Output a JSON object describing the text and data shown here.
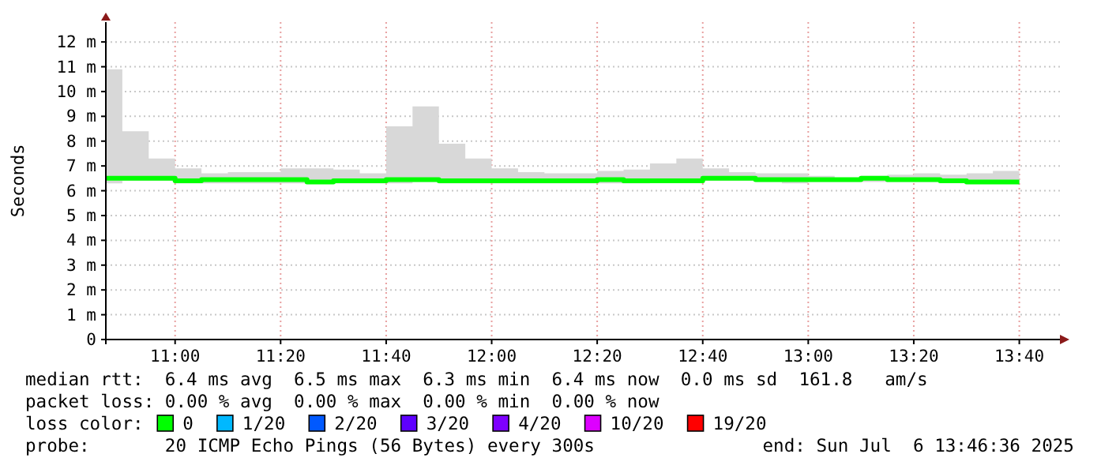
{
  "chart_data": {
    "type": "step",
    "ylabel": "Seconds",
    "legend_title": "loss color:",
    "legend": "bottom",
    "grid": true,
    "xlim": [
      10.7812,
      13.8
    ],
    "xticks": [
      {
        "value": 11,
        "label": "11:00"
      },
      {
        "value": 11.3333,
        "label": "11:20"
      },
      {
        "value": 11.6667,
        "label": "11:40"
      },
      {
        "value": 12,
        "label": "12:00"
      },
      {
        "value": 12.3333,
        "label": "12:20"
      },
      {
        "value": 12.6667,
        "label": "12:40"
      },
      {
        "value": 13,
        "label": "13:00"
      },
      {
        "value": 13.3333,
        "label": "13:20"
      },
      {
        "value": 13.6667,
        "label": "13:40"
      }
    ],
    "ylim": [
      0,
      12.8
    ],
    "yticks": [
      0,
      {
        "value": 1,
        "label": "1 m"
      },
      {
        "value": 2,
        "label": "2 m"
      },
      {
        "value": 3,
        "label": "3 m"
      },
      {
        "value": 4,
        "label": "4 m"
      },
      {
        "value": 5,
        "label": "5 m"
      },
      {
        "value": 6,
        "label": "6 m"
      },
      {
        "value": 7,
        "label": "7 m"
      },
      {
        "value": 8,
        "label": "8 m"
      },
      {
        "value": 9,
        "label": "9 m"
      },
      {
        "value": 10,
        "label": "10 m"
      },
      {
        "value": 11,
        "label": "11 m"
      },
      {
        "value": 12,
        "label": "12 m"
      }
    ],
    "x": [
      10.7812,
      10.8333,
      10.9167,
      11,
      11.0833,
      11.1667,
      11.25,
      11.3333,
      11.4167,
      11.5,
      11.5833,
      11.6667,
      11.75,
      11.8333,
      11.9167,
      12,
      12.0833,
      12.1667,
      12.25,
      12.3333,
      12.4167,
      12.5,
      12.5833,
      12.6667,
      12.75,
      12.8333,
      12.9167,
      13,
      13.0833,
      13.1667,
      13.25,
      13.3333,
      13.4167,
      13.5,
      13.5833,
      13.6667
    ],
    "series": [
      {
        "name": "0",
        "color": "#00ff00",
        "values": [
          6.5,
          6.5,
          6.5,
          6.4,
          6.45,
          6.45,
          6.45,
          6.45,
          6.35,
          6.4,
          6.4,
          6.45,
          6.45,
          6.4,
          6.4,
          6.4,
          6.4,
          6.4,
          6.4,
          6.45,
          6.4,
          6.4,
          6.4,
          6.5,
          6.5,
          6.45,
          6.45,
          6.45,
          6.45,
          6.5,
          6.45,
          6.45,
          6.4,
          6.35,
          6.35,
          6.35
        ],
        "lower": [
          6.3,
          6.4,
          6.4,
          6.3,
          6.3,
          6.3,
          6.3,
          6.3,
          6.3,
          6.3,
          6.3,
          6.3,
          6.35,
          6.3,
          6.3,
          6.3,
          6.3,
          6.3,
          6.3,
          6.3,
          6.3,
          6.35,
          6.35,
          6.4,
          6.4,
          6.35,
          6.3,
          6.35,
          6.35,
          6.35,
          6.35,
          6.35,
          6.35,
          6.3,
          6.3,
          6.3
        ],
        "upper": [
          10.9,
          8.4,
          7.3,
          6.9,
          6.7,
          6.75,
          6.75,
          6.9,
          6.9,
          6.85,
          6.7,
          8.6,
          9.4,
          7.9,
          7.3,
          6.9,
          6.75,
          6.7,
          6.7,
          6.8,
          6.85,
          7.1,
          7.3,
          6.9,
          6.75,
          6.7,
          6.7,
          6.6,
          6.5,
          6.6,
          6.65,
          6.7,
          6.65,
          6.7,
          6.8,
          6.8
        ]
      },
      {
        "name": "1/20",
        "color": "#00b8ff",
        "values": [
          null,
          null,
          null,
          null,
          null,
          null,
          null,
          null,
          null,
          null,
          null,
          null,
          null,
          null,
          null,
          null,
          null,
          null,
          null,
          null,
          null,
          null,
          null,
          null,
          null,
          null,
          null,
          null,
          null,
          null,
          null,
          null,
          null,
          null,
          null,
          null
        ]
      },
      {
        "name": "2/20",
        "color": "#0059ff",
        "values": [
          null,
          null,
          null,
          null,
          null,
          null,
          null,
          null,
          null,
          null,
          null,
          null,
          null,
          null,
          null,
          null,
          null,
          null,
          null,
          null,
          null,
          null,
          null,
          null,
          null,
          null,
          null,
          null,
          null,
          null,
          null,
          null,
          null,
          null,
          null,
          null
        ]
      },
      {
        "name": "3/20",
        "color": "#5e00ff",
        "values": [
          null,
          null,
          null,
          null,
          null,
          null,
          null,
          null,
          null,
          null,
          null,
          null,
          null,
          null,
          null,
          null,
          null,
          null,
          null,
          null,
          null,
          null,
          null,
          null,
          null,
          null,
          null,
          null,
          null,
          null,
          null,
          null,
          null,
          null,
          null,
          null
        ]
      },
      {
        "name": "4/20",
        "color": "#7e00ff",
        "values": [
          null,
          null,
          null,
          null,
          null,
          null,
          null,
          null,
          null,
          null,
          null,
          null,
          null,
          null,
          null,
          null,
          null,
          null,
          null,
          null,
          null,
          null,
          null,
          null,
          null,
          null,
          null,
          null,
          null,
          null,
          null,
          null,
          null,
          null,
          null,
          null
        ]
      },
      {
        "name": "10/20",
        "color": "#dd00ff",
        "values": [
          null,
          null,
          null,
          null,
          null,
          null,
          null,
          null,
          null,
          null,
          null,
          null,
          null,
          null,
          null,
          null,
          null,
          null,
          null,
          null,
          null,
          null,
          null,
          null,
          null,
          null,
          null,
          null,
          null,
          null,
          null,
          null,
          null,
          null,
          null,
          null
        ]
      },
      {
        "name": "19/20",
        "color": "#ff0000",
        "values": [
          null,
          null,
          null,
          null,
          null,
          null,
          null,
          null,
          null,
          null,
          null,
          null,
          null,
          null,
          null,
          null,
          null,
          null,
          null,
          null,
          null,
          null,
          null,
          null,
          null,
          null,
          null,
          null,
          null,
          null,
          null,
          null,
          null,
          null,
          null,
          null
        ]
      }
    ],
    "annotations": [
      "median rtt:  6.4 ms avg  6.5 ms max  6.3 ms min  6.4 ms now  0.0 ms sd  161.8   am/s",
      "packet loss: 0.00 % avg  0.00 % max  0.00 % min  0.00 % now",
      "probe:       20 ICMP Echo Pings (56 Bytes) every 300s",
      "end: Sun Jul  6 13:46:36 2025"
    ]
  }
}
